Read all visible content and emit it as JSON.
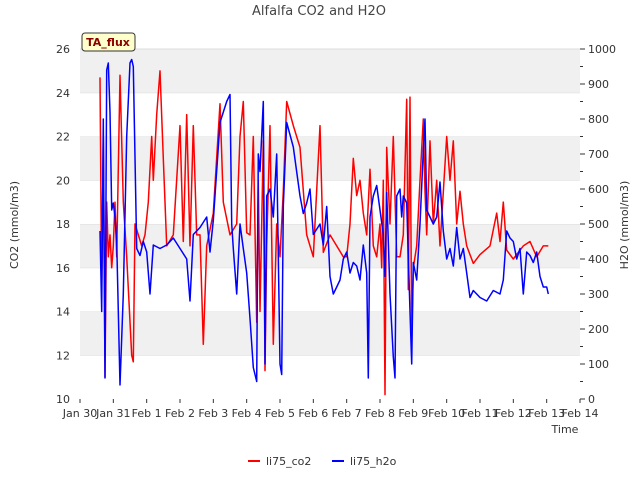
{
  "chart_data": {
    "type": "line",
    "title": "Alfalfa CO2 and H2O",
    "xlabel": "Time",
    "ylabel_left": "CO2 (mmol/m3)",
    "ylabel_right": "H2O (mmol/m3)",
    "ylim_left": [
      10,
      26
    ],
    "ylim_right": [
      0,
      1000
    ],
    "x_ticks": [
      "Jan 30",
      "Jan 31",
      "Feb 1",
      "Feb 2",
      "Feb 3",
      "Feb 4",
      "Feb 5",
      "Feb 6",
      "Feb 7",
      "Feb 8",
      "Feb 9",
      "Feb 10",
      "Feb 11",
      "Feb 12",
      "Feb 13",
      "Feb 14"
    ],
    "y_ticks_left": [
      "10",
      "12",
      "14",
      "16",
      "18",
      "20",
      "22",
      "24",
      "26"
    ],
    "y_ticks_right": [
      "0",
      "100",
      "200",
      "300",
      "400",
      "500",
      "600",
      "700",
      "800",
      "900",
      "1000"
    ],
    "grid": "horizontal bands",
    "legend_position": "bottom-center",
    "badge": "TA_flux",
    "series": [
      {
        "name": "li75_co2",
        "color": "#ff0000",
        "axis": "left",
        "points": [
          [
            0.6,
            24.7
          ],
          [
            0.65,
            15
          ],
          [
            0.7,
            22
          ],
          [
            0.75,
            11
          ],
          [
            0.8,
            19
          ],
          [
            0.85,
            16.5
          ],
          [
            0.9,
            17.5
          ],
          [
            0.95,
            16
          ],
          [
            1.0,
            17
          ],
          [
            1.05,
            19
          ],
          [
            1.1,
            16.5
          ],
          [
            1.2,
            24.8
          ],
          [
            1.3,
            19
          ],
          [
            1.4,
            16.5
          ],
          [
            1.55,
            12
          ],
          [
            1.6,
            11.7
          ],
          [
            1.65,
            18
          ],
          [
            1.75,
            17.5
          ],
          [
            1.85,
            17
          ],
          [
            1.95,
            17.5
          ],
          [
            2.05,
            19
          ],
          [
            2.15,
            22
          ],
          [
            2.2,
            20
          ],
          [
            2.3,
            23
          ],
          [
            2.4,
            25
          ],
          [
            2.5,
            21
          ],
          [
            2.6,
            17
          ],
          [
            2.8,
            17.5
          ],
          [
            3.0,
            22.5
          ],
          [
            3.1,
            17.2
          ],
          [
            3.2,
            23
          ],
          [
            3.3,
            17
          ],
          [
            3.4,
            22.5
          ],
          [
            3.5,
            17.5
          ],
          [
            3.6,
            17.5
          ],
          [
            3.7,
            12.5
          ],
          [
            3.8,
            17
          ],
          [
            4.0,
            18.5
          ],
          [
            4.2,
            23.5
          ],
          [
            4.3,
            19
          ],
          [
            4.5,
            17.5
          ],
          [
            4.7,
            18
          ],
          [
            4.8,
            22
          ],
          [
            4.9,
            23.6
          ],
          [
            5.0,
            17.6
          ],
          [
            5.1,
            17.5
          ],
          [
            5.2,
            22
          ],
          [
            5.3,
            13.5
          ],
          [
            5.35,
            20
          ],
          [
            5.4,
            14
          ],
          [
            5.5,
            21.8
          ],
          [
            5.55,
            11.3
          ],
          [
            5.6,
            17
          ],
          [
            5.7,
            22.5
          ],
          [
            5.8,
            12.5
          ],
          [
            5.9,
            18
          ],
          [
            6.0,
            16.5
          ],
          [
            6.1,
            19.5
          ],
          [
            6.2,
            23.6
          ],
          [
            6.4,
            22.5
          ],
          [
            6.6,
            21.5
          ],
          [
            6.8,
            17.5
          ],
          [
            7.0,
            16.5
          ],
          [
            7.2,
            22.5
          ],
          [
            7.3,
            16.7
          ],
          [
            7.5,
            17.5
          ],
          [
            7.7,
            17
          ],
          [
            7.9,
            16.5
          ],
          [
            8.0,
            16.5
          ],
          [
            8.1,
            18
          ],
          [
            8.2,
            21
          ],
          [
            8.3,
            19.3
          ],
          [
            8.4,
            20
          ],
          [
            8.5,
            18.5
          ],
          [
            8.6,
            17.5
          ],
          [
            8.7,
            20.5
          ],
          [
            8.8,
            17
          ],
          [
            8.9,
            16.5
          ],
          [
            9.0,
            18
          ],
          [
            9.05,
            16
          ],
          [
            9.1,
            20
          ],
          [
            9.15,
            10.2
          ],
          [
            9.2,
            21.5
          ],
          [
            9.3,
            18
          ],
          [
            9.4,
            22
          ],
          [
            9.5,
            16.5
          ],
          [
            9.6,
            16.5
          ],
          [
            9.7,
            17.5
          ],
          [
            9.8,
            23.7
          ],
          [
            9.85,
            15
          ],
          [
            9.9,
            23.8
          ],
          [
            9.95,
            13
          ],
          [
            10.0,
            16
          ],
          [
            10.1,
            17
          ],
          [
            10.2,
            20
          ],
          [
            10.3,
            22.8
          ],
          [
            10.35,
            19.5
          ],
          [
            10.4,
            17.5
          ],
          [
            10.5,
            21.8
          ],
          [
            10.6,
            18
          ],
          [
            10.7,
            20
          ],
          [
            10.8,
            17
          ],
          [
            11.0,
            22
          ],
          [
            11.1,
            20
          ],
          [
            11.2,
            21.8
          ],
          [
            11.3,
            18
          ],
          [
            11.4,
            19.5
          ],
          [
            11.5,
            18
          ],
          [
            11.6,
            17
          ],
          [
            11.8,
            16.2
          ],
          [
            12.0,
            16.6
          ],
          [
            12.3,
            17
          ],
          [
            12.5,
            18.5
          ],
          [
            12.6,
            17.2
          ],
          [
            12.7,
            19
          ],
          [
            12.8,
            16.8
          ],
          [
            13.0,
            16.4
          ],
          [
            13.3,
            17
          ],
          [
            13.5,
            17.2
          ],
          [
            13.7,
            16.5
          ],
          [
            13.9,
            17
          ],
          [
            14.05,
            17
          ]
        ]
      },
      {
        "name": "li75_h2o",
        "color": "#0000ff",
        "axis": "right",
        "points": [
          [
            0.6,
            480
          ],
          [
            0.65,
            250
          ],
          [
            0.7,
            800
          ],
          [
            0.75,
            60
          ],
          [
            0.8,
            940
          ],
          [
            0.85,
            960
          ],
          [
            0.9,
            820
          ],
          [
            0.95,
            540
          ],
          [
            1.0,
            560
          ],
          [
            1.05,
            520
          ],
          [
            1.1,
            450
          ],
          [
            1.2,
            40
          ],
          [
            1.3,
            300
          ],
          [
            1.4,
            750
          ],
          [
            1.5,
            960
          ],
          [
            1.55,
            970
          ],
          [
            1.6,
            950
          ],
          [
            1.7,
            430
          ],
          [
            1.8,
            410
          ],
          [
            1.9,
            450
          ],
          [
            2.0,
            420
          ],
          [
            2.1,
            300
          ],
          [
            2.2,
            440
          ],
          [
            2.4,
            430
          ],
          [
            2.6,
            440
          ],
          [
            2.8,
            460
          ],
          [
            3.0,
            430
          ],
          [
            3.2,
            400
          ],
          [
            3.3,
            280
          ],
          [
            3.4,
            470
          ],
          [
            3.6,
            490
          ],
          [
            3.8,
            520
          ],
          [
            3.9,
            420
          ],
          [
            4.0,
            510
          ],
          [
            4.2,
            790
          ],
          [
            4.4,
            850
          ],
          [
            4.5,
            870
          ],
          [
            4.55,
            500
          ],
          [
            4.6,
            430
          ],
          [
            4.7,
            300
          ],
          [
            4.8,
            500
          ],
          [
            4.9,
            430
          ],
          [
            5.0,
            360
          ],
          [
            5.1,
            230
          ],
          [
            5.2,
            90
          ],
          [
            5.3,
            50
          ],
          [
            5.35,
            700
          ],
          [
            5.4,
            650
          ],
          [
            5.5,
            850
          ],
          [
            5.55,
            100
          ],
          [
            5.6,
            580
          ],
          [
            5.7,
            600
          ],
          [
            5.8,
            520
          ],
          [
            5.9,
            700
          ],
          [
            6.0,
            100
          ],
          [
            6.05,
            70
          ],
          [
            6.1,
            550
          ],
          [
            6.2,
            790
          ],
          [
            6.4,
            720
          ],
          [
            6.6,
            580
          ],
          [
            6.7,
            530
          ],
          [
            6.8,
            560
          ],
          [
            6.9,
            600
          ],
          [
            7.0,
            470
          ],
          [
            7.2,
            500
          ],
          [
            7.3,
            440
          ],
          [
            7.4,
            550
          ],
          [
            7.5,
            350
          ],
          [
            7.6,
            300
          ],
          [
            7.7,
            320
          ],
          [
            7.8,
            340
          ],
          [
            7.9,
            400
          ],
          [
            8.0,
            420
          ],
          [
            8.1,
            360
          ],
          [
            8.2,
            390
          ],
          [
            8.3,
            380
          ],
          [
            8.4,
            340
          ],
          [
            8.5,
            440
          ],
          [
            8.6,
            360
          ],
          [
            8.65,
            60
          ],
          [
            8.7,
            520
          ],
          [
            8.8,
            580
          ],
          [
            8.9,
            610
          ],
          [
            9.0,
            540
          ],
          [
            9.1,
            470
          ],
          [
            9.15,
            350
          ],
          [
            9.2,
            590
          ],
          [
            9.3,
            300
          ],
          [
            9.4,
            120
          ],
          [
            9.45,
            60
          ],
          [
            9.5,
            580
          ],
          [
            9.6,
            600
          ],
          [
            9.65,
            520
          ],
          [
            9.7,
            580
          ],
          [
            9.8,
            560
          ],
          [
            9.9,
            250
          ],
          [
            9.95,
            100
          ],
          [
            10.0,
            390
          ],
          [
            10.1,
            340
          ],
          [
            10.2,
            500
          ],
          [
            10.3,
            710
          ],
          [
            10.35,
            800
          ],
          [
            10.4,
            540
          ],
          [
            10.5,
            520
          ],
          [
            10.6,
            500
          ],
          [
            10.7,
            520
          ],
          [
            10.8,
            620
          ],
          [
            10.9,
            480
          ],
          [
            11.0,
            400
          ],
          [
            11.1,
            430
          ],
          [
            11.2,
            380
          ],
          [
            11.3,
            490
          ],
          [
            11.4,
            400
          ],
          [
            11.5,
            430
          ],
          [
            11.6,
            360
          ],
          [
            11.7,
            290
          ],
          [
            11.8,
            310
          ],
          [
            11.9,
            300
          ],
          [
            12.0,
            290
          ],
          [
            12.2,
            280
          ],
          [
            12.4,
            310
          ],
          [
            12.6,
            300
          ],
          [
            12.7,
            340
          ],
          [
            12.8,
            480
          ],
          [
            12.9,
            460
          ],
          [
            13.0,
            450
          ],
          [
            13.1,
            400
          ],
          [
            13.2,
            430
          ],
          [
            13.3,
            300
          ],
          [
            13.4,
            420
          ],
          [
            13.5,
            410
          ],
          [
            13.6,
            390
          ],
          [
            13.7,
            420
          ],
          [
            13.8,
            350
          ],
          [
            13.9,
            320
          ],
          [
            14.0,
            320
          ],
          [
            14.05,
            300
          ]
        ]
      }
    ]
  }
}
